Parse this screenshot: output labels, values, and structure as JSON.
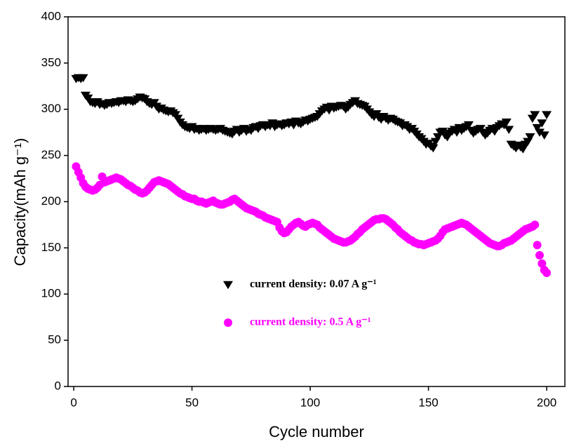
{
  "chart_data": {
    "type": "scatter",
    "x_label": "Cycle number",
    "y_label": "Capacity(mAh g⁻¹)",
    "xlim": [
      -2.4,
      207.7
    ],
    "ylim": [
      0,
      400
    ],
    "xticks": [
      0,
      50,
      100,
      150,
      200
    ],
    "yticks": [
      0,
      50,
      100,
      150,
      200,
      250,
      300,
      350,
      400
    ],
    "x": [
      1,
      2,
      3,
      4,
      5,
      6,
      7,
      8,
      9,
      10,
      11,
      12,
      13,
      14,
      15,
      16,
      17,
      18,
      19,
      20,
      21,
      22,
      23,
      24,
      25,
      26,
      27,
      28,
      29,
      30,
      31,
      32,
      33,
      34,
      35,
      36,
      37,
      38,
      39,
      40,
      41,
      42,
      43,
      44,
      45,
      46,
      47,
      48,
      49,
      50,
      51,
      52,
      53,
      54,
      55,
      56,
      57,
      58,
      59,
      60,
      61,
      62,
      63,
      64,
      65,
      66,
      67,
      68,
      69,
      70,
      71,
      72,
      73,
      74,
      75,
      76,
      77,
      78,
      79,
      80,
      81,
      82,
      83,
      84,
      85,
      86,
      87,
      88,
      89,
      90,
      91,
      92,
      93,
      94,
      95,
      96,
      97,
      98,
      99,
      100,
      101,
      102,
      103,
      104,
      105,
      106,
      107,
      108,
      109,
      110,
      111,
      112,
      113,
      114,
      115,
      116,
      117,
      118,
      119,
      120,
      121,
      122,
      123,
      124,
      125,
      126,
      127,
      128,
      129,
      130,
      131,
      132,
      133,
      134,
      135,
      136,
      137,
      138,
      139,
      140,
      141,
      142,
      143,
      144,
      145,
      146,
      147,
      148,
      149,
      150,
      151,
      152,
      153,
      154,
      155,
      156,
      157,
      158,
      159,
      160,
      161,
      162,
      163,
      164,
      165,
      166,
      167,
      168,
      169,
      170,
      171,
      172,
      173,
      174,
      175,
      176,
      177,
      178,
      179,
      180,
      181,
      182,
      183,
      184,
      185,
      186,
      187,
      188,
      189,
      190,
      191,
      192,
      193,
      194,
      195,
      196,
      197,
      198,
      199,
      200
    ],
    "series": [
      {
        "name": "current density: 0.07 A g⁻¹",
        "color": "#000000",
        "marker": "triangle-down",
        "values": [
          333,
          334,
          333,
          334,
          315,
          312,
          308,
          307,
          306,
          308,
          305,
          306,
          304,
          305,
          307,
          306,
          307,
          308,
          307,
          309,
          309,
          308,
          310,
          309,
          308,
          309,
          311,
          313,
          312,
          311,
          308,
          306,
          305,
          307,
          303,
          300,
          301,
          299,
          298,
          297,
          298,
          296,
          294,
          290,
          286,
          283,
          281,
          280,
          279,
          281,
          278,
          279,
          277,
          278,
          279,
          277,
          278,
          279,
          278,
          277,
          278,
          279,
          277,
          276,
          275,
          274,
          273,
          276,
          278,
          275,
          277,
          279,
          276,
          278,
          277,
          280,
          281,
          279,
          282,
          283,
          281,
          283,
          282,
          285,
          281,
          283,
          284,
          282,
          283,
          285,
          284,
          286,
          283,
          287,
          285,
          284,
          286,
          288,
          287,
          289,
          290,
          291,
          292,
          295,
          298,
          300,
          302,
          299,
          303,
          301,
          302,
          303,
          304,
          303,
          300,
          302,
          305,
          307,
          309,
          306,
          305,
          304,
          303,
          300,
          297,
          294,
          292,
          295,
          291,
          289,
          292,
          290,
          288,
          290,
          289,
          287,
          286,
          285,
          282,
          283,
          281,
          278,
          279,
          276,
          273,
          270,
          268,
          265,
          262,
          263,
          260,
          258,
          265,
          270,
          275,
          276,
          272,
          270,
          274,
          276,
          278,
          275,
          280,
          277,
          279,
          281,
          283,
          277,
          274,
          276,
          278,
          279,
          275,
          272,
          274,
          277,
          279,
          276,
          280,
          282,
          284,
          283,
          286,
          278,
          262,
          260,
          258,
          261,
          259,
          257,
          262,
          265,
          270,
          290,
          294,
          280,
          275,
          285,
          272,
          294
        ]
      },
      {
        "name": "current density: 0.5 A g⁻¹",
        "color": "#ff00ff",
        "marker": "circle",
        "values": [
          238,
          232,
          226,
          220,
          216,
          214,
          213,
          212,
          213,
          215,
          218,
          227,
          221,
          222,
          223,
          224,
          225,
          226,
          225,
          224,
          222,
          220,
          218,
          217,
          215,
          213,
          212,
          210,
          209,
          210,
          212,
          215,
          218,
          221,
          222,
          223,
          222,
          221,
          220,
          219,
          217,
          215,
          213,
          211,
          209,
          208,
          206,
          205,
          204,
          203,
          203,
          201,
          200,
          200,
          199,
          198,
          199,
          200,
          201,
          199,
          198,
          197,
          197,
          198,
          199,
          200,
          202,
          203,
          201,
          199,
          197,
          195,
          193,
          192,
          191,
          190,
          189,
          187,
          186,
          185,
          183,
          182,
          181,
          180,
          179,
          178,
          172,
          168,
          166,
          167,
          170,
          173,
          175,
          177,
          178,
          176,
          174,
          173,
          175,
          176,
          177,
          176,
          175,
          172,
          170,
          168,
          166,
          164,
          162,
          160,
          159,
          158,
          157,
          156,
          156,
          157,
          158,
          160,
          162,
          165,
          167,
          170,
          172,
          174,
          176,
          178,
          180,
          181,
          181,
          182,
          182,
          181,
          179,
          177,
          175,
          172,
          170,
          167,
          165,
          163,
          161,
          159,
          158,
          156,
          155,
          154,
          154,
          153,
          154,
          155,
          156,
          157,
          158,
          160,
          163,
          167,
          170,
          171,
          172,
          173,
          174,
          175,
          176,
          177,
          176,
          175,
          173,
          171,
          169,
          167,
          165,
          163,
          161,
          159,
          157,
          155,
          154,
          153,
          152,
          152,
          153,
          155,
          156,
          157,
          158,
          160,
          162,
          164,
          166,
          168,
          170,
          171,
          172,
          173,
          175,
          153,
          142,
          133,
          126,
          123
        ]
      }
    ]
  }
}
